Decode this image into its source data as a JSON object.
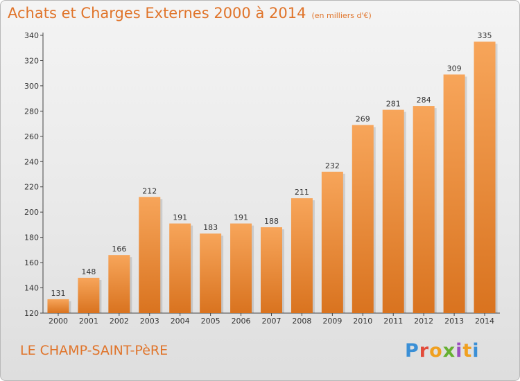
{
  "header": {
    "title": "Achats et Charges Externes 2000 à 2014",
    "subtitle": "(en milliers d'€)"
  },
  "footer": {
    "commune": "LE CHAMP-SAINT-PèRE",
    "logo_letters": [
      "P",
      "r",
      "o",
      "x",
      "i",
      "t",
      "i"
    ]
  },
  "colors": {
    "bar_light": "#f7a55a",
    "bar_dark": "#d9731f",
    "title": "#e0742a",
    "logo": [
      "#3a8fd6",
      "#e24b3a",
      "#f0a020",
      "#66b032",
      "#9a4fc0",
      "#f0a020",
      "#3a8fd6"
    ]
  },
  "chart_data": {
    "type": "bar",
    "title": "Achats et Charges Externes 2000 à 2014",
    "subtitle": "(en milliers d'€)",
    "categories": [
      "2000",
      "2001",
      "2002",
      "2003",
      "2004",
      "2005",
      "2006",
      "2007",
      "2008",
      "2009",
      "2010",
      "2011",
      "2012",
      "2013",
      "2014"
    ],
    "values": [
      131,
      148,
      166,
      212,
      191,
      183,
      191,
      188,
      211,
      232,
      269,
      281,
      284,
      309,
      335
    ],
    "ylim": [
      120,
      340
    ],
    "yticks": [
      120,
      140,
      160,
      180,
      200,
      220,
      240,
      260,
      280,
      300,
      320,
      340
    ],
    "grid": false,
    "data_labels": true
  }
}
